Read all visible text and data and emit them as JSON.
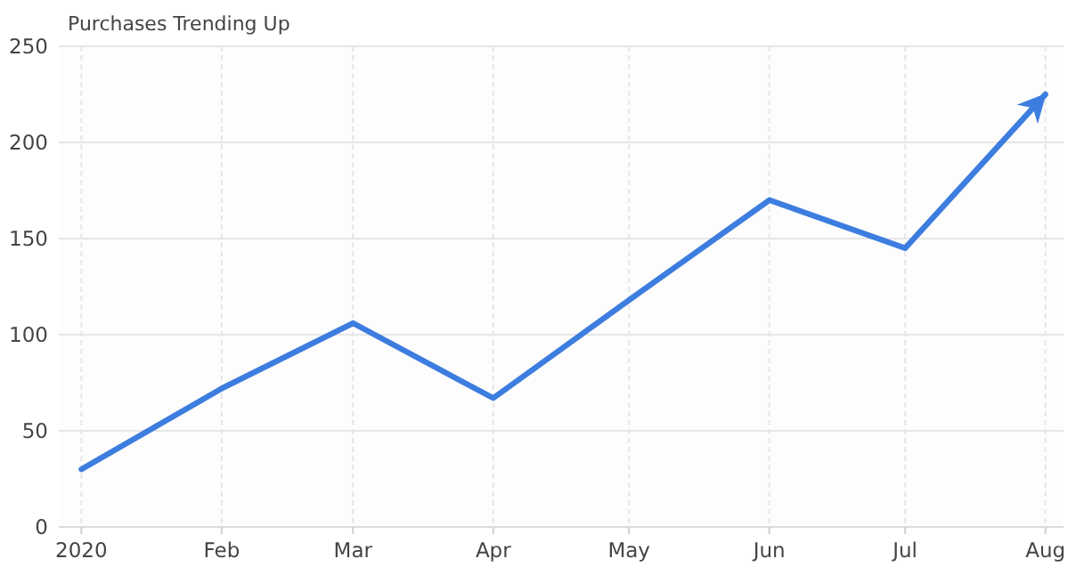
{
  "chart_data": {
    "type": "line",
    "title": "Purchases Trending Up",
    "x": [
      "2020-01-01",
      "2020-02-01",
      "2020-03-01",
      "2020-04-01",
      "2020-05-01",
      "2020-06-01",
      "2020-07-01",
      "2020-08-01"
    ],
    "series": [
      {
        "color": "#3d7ddf",
        "values": [
          30,
          72,
          106,
          67,
          118,
          170,
          145,
          225
        ]
      }
    ],
    "xlim": [
      "2019-12-27",
      "2020-08-05"
    ],
    "xticks": [
      {
        "value": "2020-01-01",
        "label": "2020"
      },
      {
        "value": "2020-02-01",
        "label": "Feb"
      },
      {
        "value": "2020-03-01",
        "label": "Mar"
      },
      {
        "value": "2020-04-01",
        "label": "Apr"
      },
      {
        "value": "2020-05-01",
        "label": "May"
      },
      {
        "value": "2020-06-01",
        "label": "Jun"
      },
      {
        "value": "2020-07-01",
        "label": "Jul"
      },
      {
        "value": "2020-08-01",
        "label": "Aug"
      }
    ],
    "ylim": [
      0,
      250
    ],
    "yticks": [
      0,
      50,
      100,
      150,
      200,
      250
    ],
    "grid": true,
    "marker": "none",
    "line_style": "solid"
  }
}
